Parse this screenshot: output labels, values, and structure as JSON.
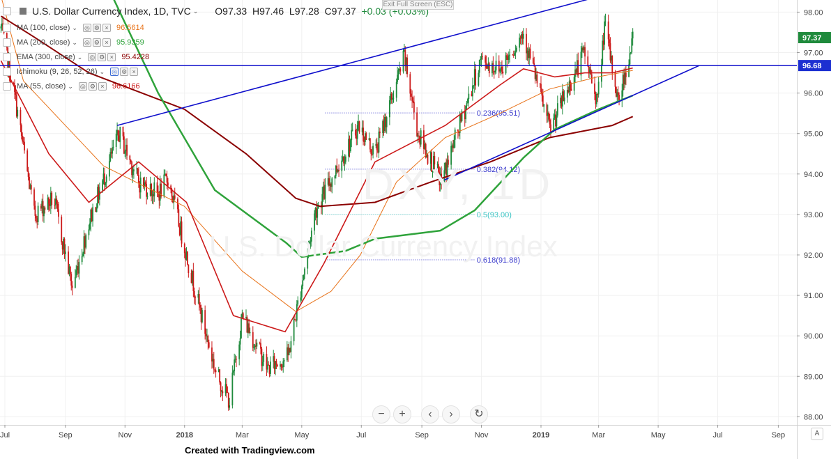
{
  "header": {
    "symbol_title": "U.S. Dollar Currency Index, 1D, TVC",
    "ohlc": {
      "open": "O97.33",
      "high": "H97.46",
      "low": "L97.28",
      "close": "C97.37",
      "change": "+0.03 (+0.03%)"
    },
    "exit_fullscreen": "Exit Full Screen (ESC)"
  },
  "indicators": [
    {
      "name": "MA (100, close)",
      "value": "96.5614",
      "color": "#e8731a"
    },
    {
      "name": "MA (200, close)",
      "value": "95.9359",
      "color": "#2fa33b"
    },
    {
      "name": "EMA (300, close)",
      "value": "95.4228",
      "color": "#8b0000"
    },
    {
      "name": "Ichimoku (9, 26, 52, 26)",
      "value": "",
      "color": "#3b6bd6"
    },
    {
      "name": "MA (55, close)",
      "value": "96.6166",
      "color": "#cc1a1a"
    }
  ],
  "watermark": {
    "symbol": "DXY, 1D",
    "name": "U.S. Dollar Currency Index"
  },
  "footer": "Created with Tradingview.com",
  "nav": {
    "zoom_out": "−",
    "zoom_in": "+",
    "back": "‹",
    "forward": "›",
    "reset": "↻"
  },
  "scale_button": "A",
  "colors": {
    "up": "#1f8a3c",
    "down": "#cc1a1a",
    "trend": "#1010cc",
    "fib": "#3b3bcc",
    "fib_half": "#3cc4c4"
  },
  "chart_data": {
    "type": "candlestick",
    "title": "U.S. Dollar Currency Index, 1D, TVC",
    "y_range": [
      87.8,
      98.3
    ],
    "y_ticks": [
      "98.00",
      "97.00",
      "96.00",
      "95.00",
      "94.00",
      "93.00",
      "92.00",
      "91.00",
      "90.00",
      "89.00",
      "88.00"
    ],
    "y_tick_values": [
      98,
      97,
      96,
      95,
      94,
      93,
      92,
      91,
      90,
      89,
      88
    ],
    "x_range": [
      "2017-06-26",
      "2019-09-20"
    ],
    "x_ticks": [
      {
        "label": "Jul",
        "date": "2017-07-01"
      },
      {
        "label": "Sep",
        "date": "2017-09-01"
      },
      {
        "label": "Nov",
        "date": "2017-11-01"
      },
      {
        "label": "2018",
        "date": "2018-01-01"
      },
      {
        "label": "Mar",
        "date": "2018-03-01"
      },
      {
        "label": "May",
        "date": "2018-05-01"
      },
      {
        "label": "Jul",
        "date": "2018-07-01"
      },
      {
        "label": "Sep",
        "date": "2018-09-01"
      },
      {
        "label": "Nov",
        "date": "2018-11-01"
      },
      {
        "label": "2019",
        "date": "2019-01-01"
      },
      {
        "label": "Mar",
        "date": "2019-03-01"
      },
      {
        "label": "May",
        "date": "2019-05-01"
      },
      {
        "label": "Jul",
        "date": "2019-07-01"
      },
      {
        "label": "Sep",
        "date": "2019-09-01"
      }
    ],
    "price_path": [
      [
        "2017-06-27",
        97.6
      ],
      [
        "2017-07-12",
        95.8
      ],
      [
        "2017-07-31",
        93.0
      ],
      [
        "2017-08-20",
        93.4
      ],
      [
        "2017-09-08",
        91.2
      ],
      [
        "2017-09-25",
        92.8
      ],
      [
        "2017-10-26",
        95.0
      ],
      [
        "2017-11-15",
        93.8
      ],
      [
        "2017-12-05",
        93.5
      ],
      [
        "2017-12-15",
        93.9
      ],
      [
        "2018-01-03",
        92.0
      ],
      [
        "2018-01-15",
        90.8
      ],
      [
        "2018-02-02",
        89.1
      ],
      [
        "2018-02-16",
        88.4
      ],
      [
        "2018-03-01",
        90.5
      ],
      [
        "2018-03-27",
        89.2
      ],
      [
        "2018-04-17",
        89.5
      ],
      [
        "2018-05-15",
        93.1
      ],
      [
        "2018-06-28",
        95.2
      ],
      [
        "2018-07-15",
        94.5
      ],
      [
        "2018-08-14",
        96.9
      ],
      [
        "2018-08-28",
        95.0
      ],
      [
        "2018-09-21",
        93.8
      ],
      [
        "2018-10-31",
        96.8
      ],
      [
        "2018-11-20",
        96.6
      ],
      [
        "2018-12-14",
        97.5
      ],
      [
        "2019-01-10",
        95.1
      ],
      [
        "2019-02-14",
        97.0
      ],
      [
        "2019-02-28",
        95.8
      ],
      [
        "2019-03-07",
        97.7
      ],
      [
        "2019-03-21",
        95.8
      ],
      [
        "2019-04-05",
        97.3
      ]
    ],
    "last_close": 97.37,
    "ma55_path": [
      [
        "2017-06-27",
        96.8
      ],
      [
        "2017-08-15",
        94.5
      ],
      [
        "2017-09-25",
        93.3
      ],
      [
        "2017-11-15",
        94.3
      ],
      [
        "2018-01-03",
        93.3
      ],
      [
        "2018-02-20",
        90.5
      ],
      [
        "2018-04-14",
        90.1
      ],
      [
        "2018-05-24",
        91.8
      ],
      [
        "2018-07-15",
        94.3
      ],
      [
        "2018-09-25",
        95.2
      ],
      [
        "2018-11-20",
        96.2
      ],
      [
        "2018-12-14",
        96.6
      ],
      [
        "2019-01-15",
        96.4
      ],
      [
        "2019-02-15",
        96.5
      ],
      [
        "2019-03-15",
        96.5
      ],
      [
        "2019-04-05",
        96.62
      ]
    ],
    "ma100_path": [
      [
        "2017-06-27",
        98.4
      ],
      [
        "2017-07-20",
        96.3
      ],
      [
        "2017-10-10",
        94.2
      ],
      [
        "2018-01-01",
        93.2
      ],
      [
        "2018-03-01",
        91.6
      ],
      [
        "2018-04-25",
        90.6
      ],
      [
        "2018-05-31",
        91.1
      ],
      [
        "2018-06-30",
        92.0
      ],
      [
        "2018-08-06",
        93.8
      ],
      [
        "2018-09-25",
        94.9
      ],
      [
        "2018-11-20",
        95.5
      ],
      [
        "2019-01-10",
        96.1
      ],
      [
        "2019-02-28",
        96.4
      ],
      [
        "2019-04-05",
        96.56
      ]
    ],
    "ma200_path": [
      [
        "2017-10-15",
        98.6
      ],
      [
        "2017-12-05",
        96.0
      ],
      [
        "2018-02-01",
        93.6
      ],
      [
        "2018-04-15",
        92.3
      ],
      [
        "2018-05-01",
        91.95
      ],
      [
        "2018-06-15",
        92.1
      ],
      [
        "2018-07-15",
        92.4
      ],
      [
        "2018-09-20",
        92.6
      ],
      [
        "2018-10-25",
        93.1
      ],
      [
        "2018-12-14",
        94.4
      ],
      [
        "2019-01-15",
        95.1
      ],
      [
        "2019-03-01",
        95.6
      ],
      [
        "2019-04-05",
        95.94
      ]
    ],
    "ema300_path": [
      [
        "2017-06-27",
        97.9
      ],
      [
        "2017-07-30",
        97.4
      ],
      [
        "2017-09-25",
        96.5
      ],
      [
        "2018-01-01",
        95.6
      ],
      [
        "2018-03-05",
        94.5
      ],
      [
        "2018-04-25",
        93.4
      ],
      [
        "2018-05-20",
        93.2
      ],
      [
        "2018-07-15",
        93.3
      ],
      [
        "2018-09-10",
        93.8
      ],
      [
        "2018-11-10",
        94.3
      ],
      [
        "2019-01-10",
        94.9
      ],
      [
        "2019-03-15",
        95.2
      ],
      [
        "2019-04-05",
        95.42
      ]
    ],
    "trendlines": [
      {
        "from": [
          "2017-10-24",
          95.2
        ],
        "to": [
          "2019-03-03",
          98.4
        ]
      },
      {
        "from": [
          "2018-09-24",
          93.85
        ],
        "to": [
          "2019-06-12",
          96.68
        ]
      }
    ],
    "horizontal_line": {
      "value": 96.68,
      "label": "96.68"
    },
    "last_price_label": "97.37",
    "fibonacci": [
      {
        "label": "0.236(95.51)",
        "value": 95.51
      },
      {
        "label": "0.382(94.12)",
        "value": 94.12
      },
      {
        "label": "0.5(93.00)",
        "value": 93.0
      },
      {
        "label": "0.618(91.88)",
        "value": 91.88
      }
    ],
    "fib_range": [
      "2018-05-25",
      "2018-10-25"
    ]
  }
}
